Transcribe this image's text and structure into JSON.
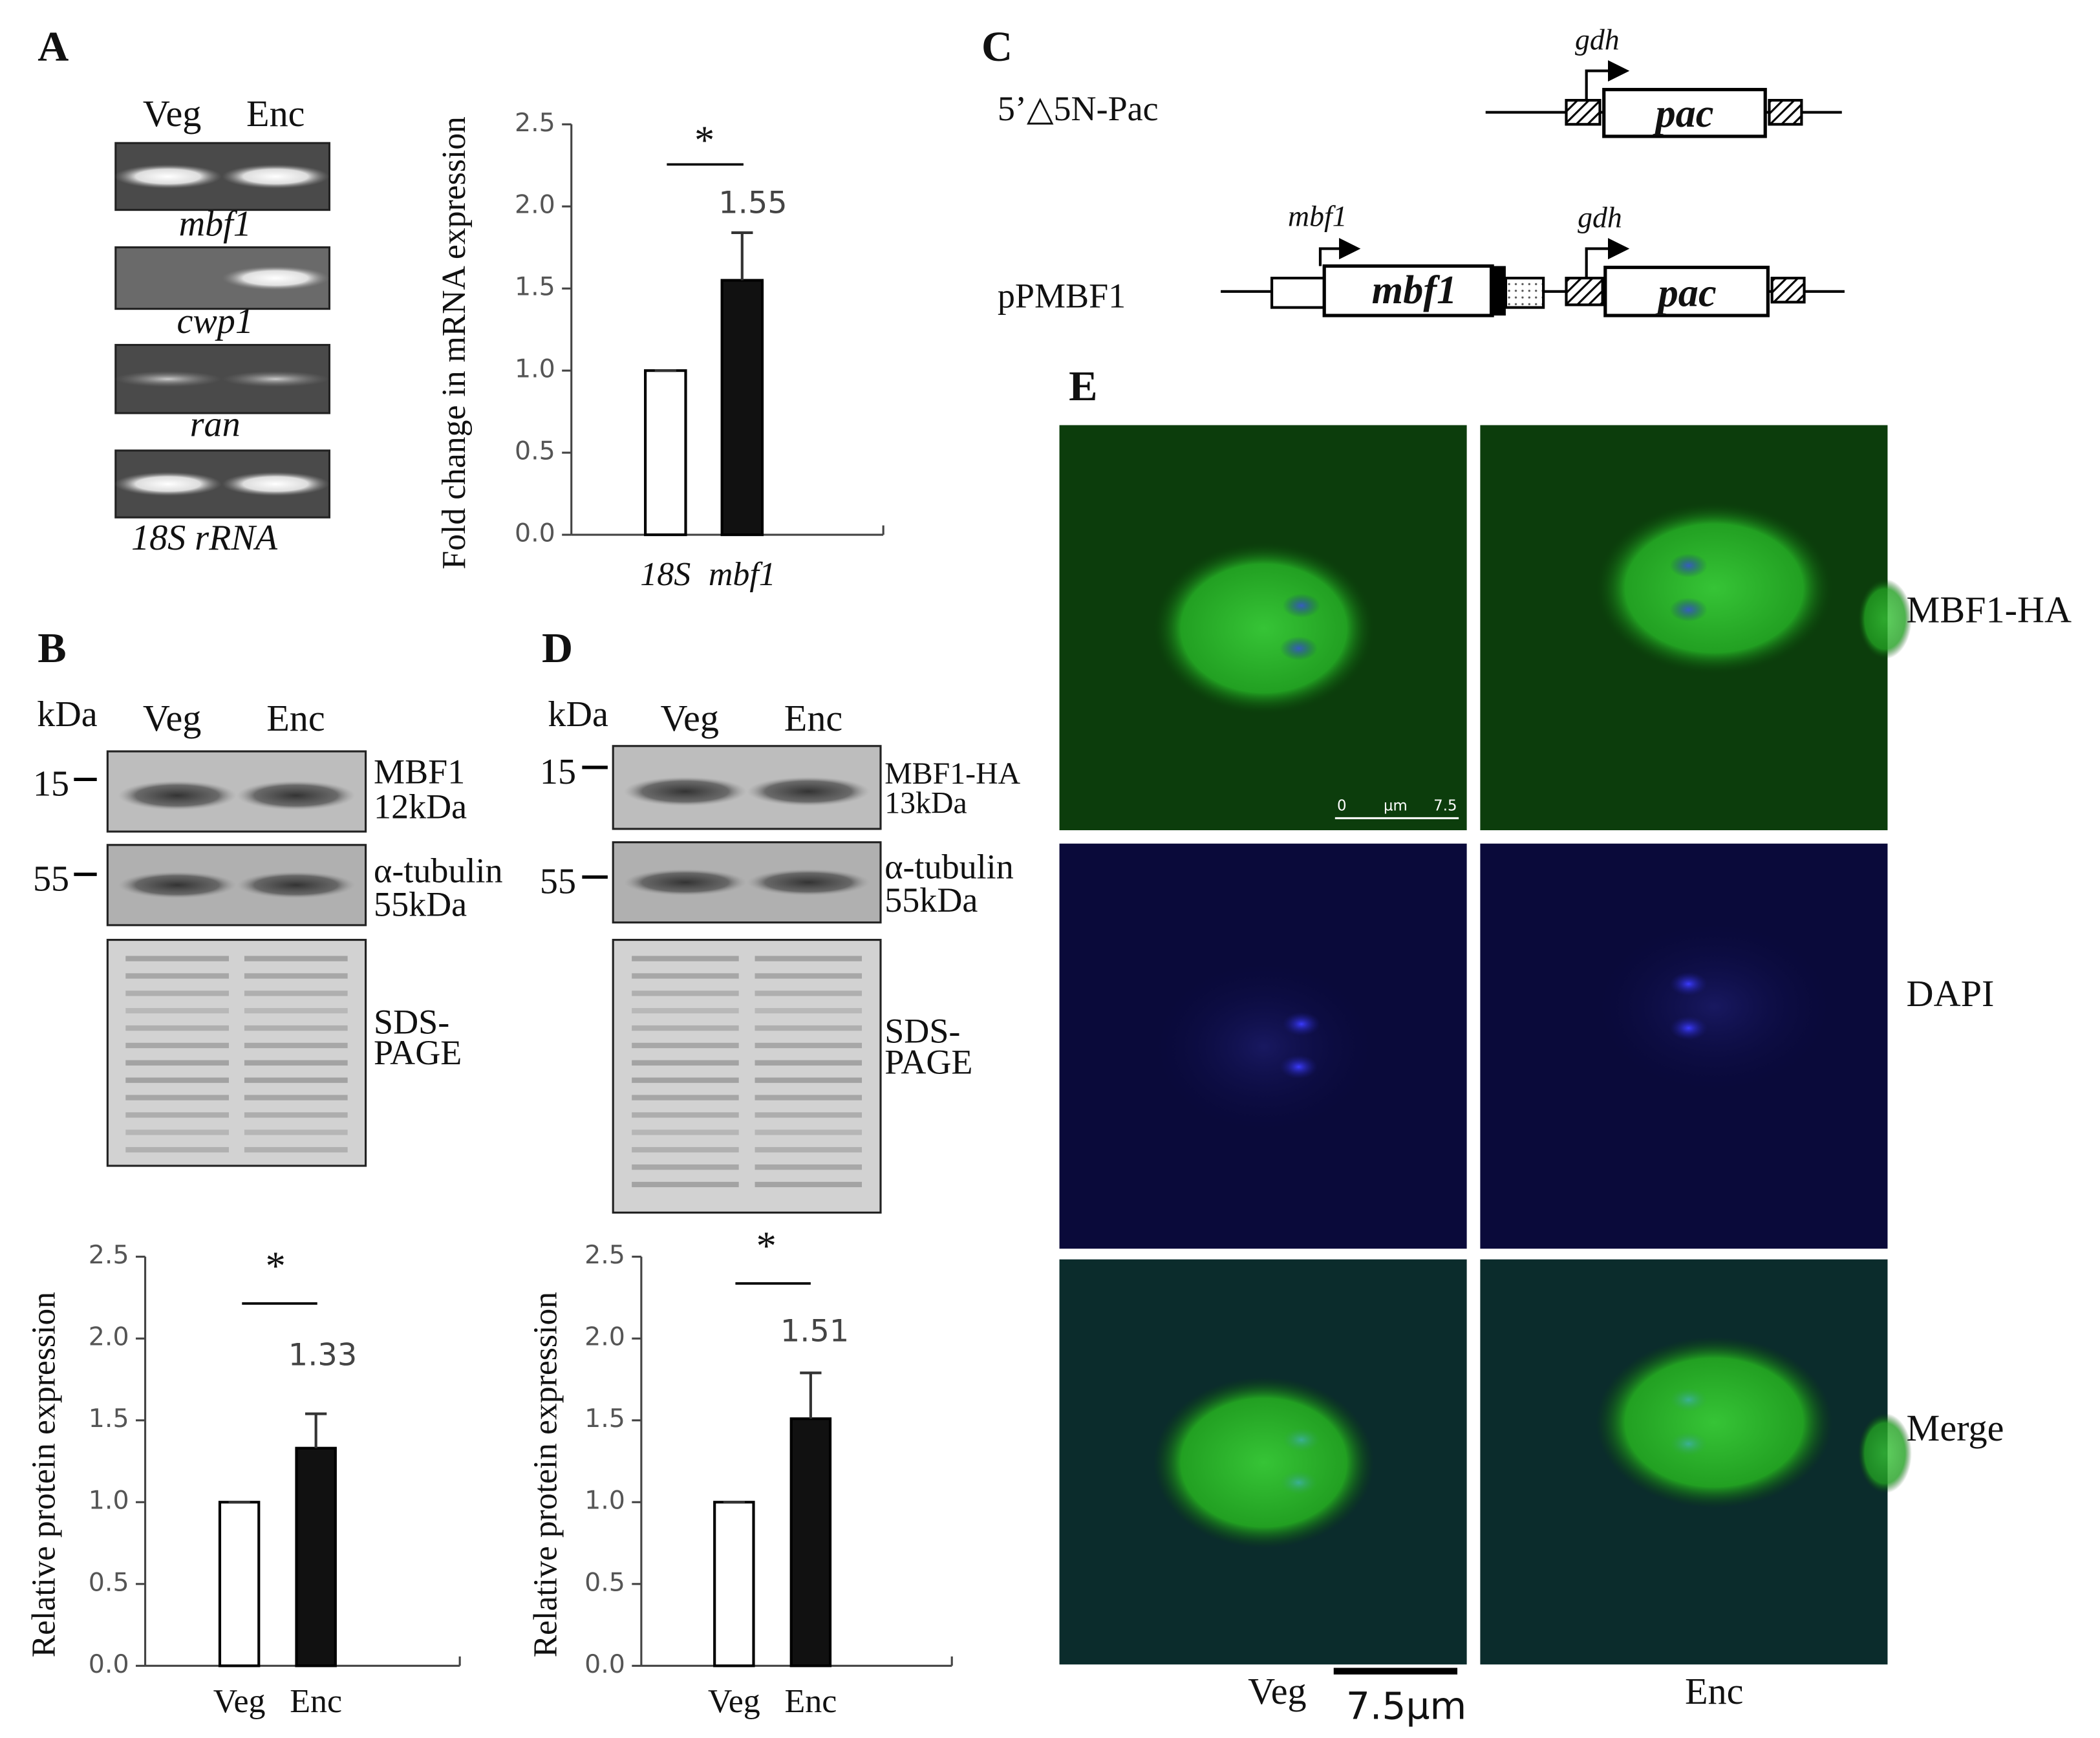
{
  "figure": {
    "panel_letters": [
      "A",
      "B",
      "C",
      "D",
      "E"
    ],
    "gel": {
      "lanes": [
        "Veg",
        "Enc"
      ],
      "genes": [
        "mbf1",
        "cwp1",
        "ran",
        "18S rRNA"
      ]
    },
    "blot_B": {
      "unit": "kDa",
      "lanes": [
        "Veg",
        "Enc"
      ],
      "markers": [
        "15",
        "55"
      ],
      "labels": [
        "MBF1",
        "12kDa",
        "α-tubulin",
        "55kDa",
        "SDS-",
        "PAGE"
      ]
    },
    "blot_D": {
      "unit": "kDa",
      "lanes": [
        "Veg",
        "Enc"
      ],
      "markers": [
        "15",
        "55"
      ],
      "labels": [
        "MBF1-HA",
        "13kDa",
        "α-tubulin",
        "55kDa",
        "SDS-",
        "PAGE"
      ]
    },
    "constructs": {
      "names": [
        "5’△5N-Pac",
        "pPMBF1"
      ],
      "genes": [
        "gdh",
        "pac",
        "mbf1",
        "mbf1",
        "gdh",
        "pac"
      ]
    },
    "microscopy": {
      "rows": [
        "MBF1-HA",
        "DAPI",
        "Merge"
      ],
      "columns": [
        "Veg",
        "Enc"
      ],
      "scale_bar": "7.5µm",
      "inset_scale": [
        "0",
        "µm",
        "7.5"
      ]
    }
  },
  "chart_data": [
    {
      "type": "bar",
      "categories": [
        "18S",
        "mbf1"
      ],
      "values": [
        1.0,
        1.55
      ],
      "errors": [
        0,
        0.29
      ],
      "value_labels": [
        null,
        "1.55"
      ],
      "colors": [
        "#ffffff",
        "#111111"
      ],
      "ylabel": "Fold change in mRNA expression",
      "ylim": [
        0,
        2.5
      ],
      "yticks": [
        {
          "value": 0,
          "label": "0.0"
        },
        0.5,
        {
          "value": 1,
          "label": "1.0"
        },
        1.5,
        {
          "value": 2,
          "label": "2.0"
        },
        2.5
      ],
      "significance": "*"
    },
    {
      "type": "bar",
      "categories": [
        "Veg",
        "Enc"
      ],
      "values": [
        1.0,
        1.33
      ],
      "errors": [
        0,
        0.21
      ],
      "value_labels": [
        null,
        "1.33"
      ],
      "colors": [
        "#ffffff",
        "#111111"
      ],
      "ylabel": "Relative protein expression",
      "ylim": [
        0,
        2.5
      ],
      "yticks": [
        {
          "value": 0,
          "label": "0.0"
        },
        0.5,
        {
          "value": 1,
          "label": "1.0"
        },
        1.5,
        {
          "value": 2,
          "label": "2.0"
        },
        2.5
      ],
      "significance": "*"
    },
    {
      "type": "bar",
      "categories": [
        "Veg",
        "Enc"
      ],
      "values": [
        1.0,
        1.51
      ],
      "errors": [
        0,
        0.28
      ],
      "value_labels": [
        null,
        "1.51"
      ],
      "colors": [
        "#ffffff",
        "#111111"
      ],
      "ylabel": "Relative protein expression",
      "ylim": [
        0,
        2.5
      ],
      "yticks": [
        {
          "value": 0,
          "label": "0.0"
        },
        0.5,
        {
          "value": 1,
          "label": "1.0"
        },
        1.5,
        {
          "value": 2,
          "label": "2.0"
        },
        2.5
      ],
      "significance": "*"
    }
  ]
}
